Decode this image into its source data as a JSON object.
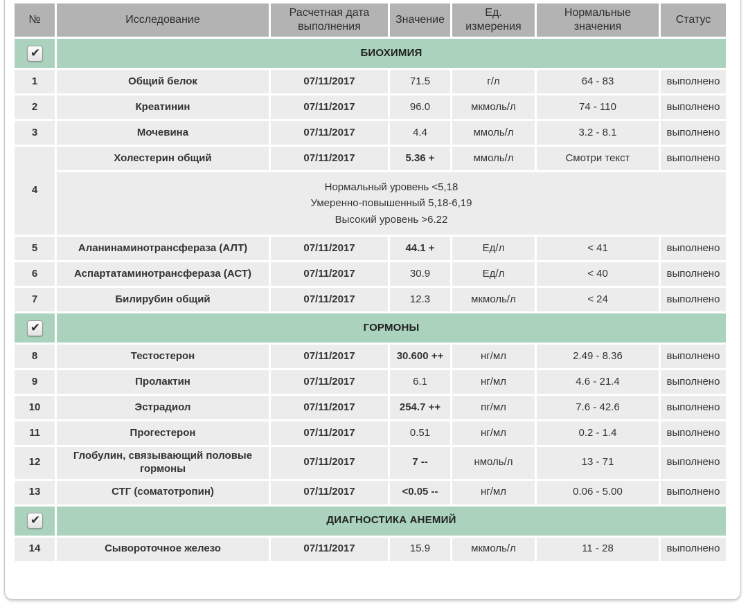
{
  "colors": {
    "header_bg": "#b3b3b3",
    "section_bg": "#aad2bc",
    "row_bg": "#ececec",
    "text": "#333333"
  },
  "icons": {
    "checkmark": "✔"
  },
  "table": {
    "columns": [
      "№",
      "Исследование",
      "Расчетная дата выполнения",
      "Значение",
      "Ед. измерения",
      "Нормальные значения",
      "Статус"
    ],
    "sections": [
      {
        "title": "БИОХИМИЯ",
        "checked": true,
        "rows": [
          {
            "num": "1",
            "name": "Общий белок",
            "date": "07/11/2017",
            "value": "71.5",
            "flagged": false,
            "unit": "г/л",
            "normal": "64 - 83",
            "status": "выполнено"
          },
          {
            "num": "2",
            "name": "Креатинин",
            "date": "07/11/2017",
            "value": "96.0",
            "flagged": false,
            "unit": "мкмоль/л",
            "normal": "74 - 110",
            "status": "выполнено"
          },
          {
            "num": "3",
            "name": "Мочевина",
            "date": "07/11/2017",
            "value": "4.4",
            "flagged": false,
            "unit": "ммоль/л",
            "normal": "3.2 - 8.1",
            "status": "выполнено"
          },
          {
            "num": "4",
            "name": "Холестерин общий",
            "date": "07/11/2017",
            "value": "5.36 +",
            "flagged": true,
            "unit": "ммоль/л",
            "normal": "Смотри текст",
            "status": "выполнено",
            "note_lines": [
              "Нормальный уровень <5,18",
              "Умеренно-повышенный 5,18-6,19",
              "Высокий уровень >6.22"
            ]
          },
          {
            "num": "5",
            "name": "Аланинаминотрансфераза (АЛТ)",
            "date": "07/11/2017",
            "value": "44.1 +",
            "flagged": true,
            "unit": "Ед/л",
            "normal": "< 41",
            "status": "выполнено"
          },
          {
            "num": "6",
            "name": "Аспартатаминотрансфераза (АСТ)",
            "date": "07/11/2017",
            "value": "30.9",
            "flagged": false,
            "unit": "Ед/л",
            "normal": "< 40",
            "status": "выполнено"
          },
          {
            "num": "7",
            "name": "Билирубин общий",
            "date": "07/11/2017",
            "value": "12.3",
            "flagged": false,
            "unit": "мкмоль/л",
            "normal": "< 24",
            "status": "выполнено"
          }
        ]
      },
      {
        "title": "ГОРМОНЫ",
        "checked": true,
        "rows": [
          {
            "num": "8",
            "name": "Тестостерон",
            "date": "07/11/2017",
            "value": "30.600 ++",
            "flagged": true,
            "unit": "нг/мл",
            "normal": "2.49 - 8.36",
            "status": "выполнено"
          },
          {
            "num": "9",
            "name": "Пролактин",
            "date": "07/11/2017",
            "value": "6.1",
            "flagged": false,
            "unit": "нг/мл",
            "normal": "4.6 - 21.4",
            "status": "выполнено"
          },
          {
            "num": "10",
            "name": "Эстрадиол",
            "date": "07/11/2017",
            "value": "254.7 ++",
            "flagged": true,
            "unit": "пг/мл",
            "normal": "7.6 - 42.6",
            "status": "выполнено"
          },
          {
            "num": "11",
            "name": "Прогестерон",
            "date": "07/11/2017",
            "value": "0.51",
            "flagged": false,
            "unit": "нг/мл",
            "normal": "0.2 - 1.4",
            "status": "выполнено"
          },
          {
            "num": "12",
            "name": "Глобулин, связывающий половые гормоны",
            "date": "07/11/2017",
            "value": "7 --",
            "flagged": true,
            "unit": "нмоль/л",
            "normal": "13 - 71",
            "status": "выполнено"
          },
          {
            "num": "13",
            "name": "СТГ (соматотропин)",
            "date": "07/11/2017",
            "value": "<0.05 --",
            "flagged": true,
            "unit": "нг/мл",
            "normal": "0.06 - 5.00",
            "status": "выполнено"
          }
        ]
      },
      {
        "title": "ДИАГНОСТИКА АНЕМИЙ",
        "checked": true,
        "rows": [
          {
            "num": "14",
            "name": "Сывороточное железо",
            "date": "07/11/2017",
            "value": "15.9",
            "flagged": false,
            "unit": "мкмоль/л",
            "normal": "11 - 28",
            "status": "выполнено"
          }
        ]
      }
    ]
  }
}
